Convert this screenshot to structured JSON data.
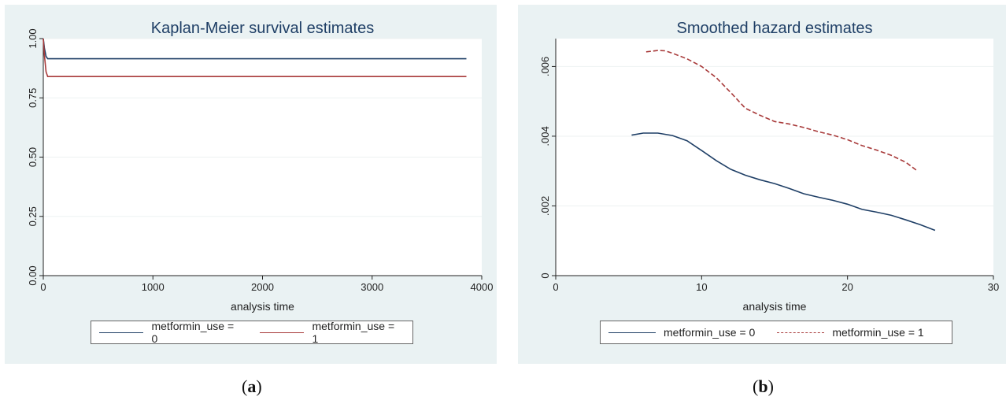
{
  "colors": {
    "series0": "#1f3f66",
    "series1": "#a83a3a",
    "panel_bg": "#eaf2f3",
    "title": "#1f3f66"
  },
  "chart_data": [
    {
      "type": "line",
      "title": "Kaplan-Meier survival estimates",
      "xlabel": "analysis time",
      "ylabel": "",
      "xlim": [
        0,
        4000
      ],
      "ylim": [
        0,
        1
      ],
      "xticks": [
        "0",
        "1000",
        "2000",
        "3000",
        "4000"
      ],
      "yticks": [
        "0.00",
        "0.25",
        "0.50",
        "0.75",
        "1.00"
      ],
      "grid": true,
      "legend": "bottom",
      "series": [
        {
          "name": "metformin_use = 0",
          "style": "solid",
          "x": [
            0,
            10,
            25,
            40,
            3860
          ],
          "y": [
            1.0,
            0.96,
            0.925,
            0.915,
            0.915
          ]
        },
        {
          "name": "metformin_use = 1",
          "style": "solid",
          "x": [
            0,
            10,
            25,
            40,
            3860
          ],
          "y": [
            1.0,
            0.93,
            0.86,
            0.84,
            0.84
          ]
        }
      ]
    },
    {
      "type": "line",
      "title": "Smoothed hazard estimates",
      "xlabel": "analysis time",
      "ylabel": "",
      "xlim": [
        0,
        30
      ],
      "ylim": [
        0,
        0.0068
      ],
      "xticks": [
        "0",
        "10",
        "20",
        "30"
      ],
      "yticks": [
        "0",
        ".002",
        ".004",
        ".006"
      ],
      "grid": true,
      "legend": "bottom",
      "series": [
        {
          "name": "metformin_use = 0",
          "style": "solid",
          "x": [
            5.2,
            6,
            7,
            8,
            9,
            10,
            11,
            12,
            13,
            14,
            15,
            16,
            17,
            18,
            19,
            20,
            21,
            22,
            23,
            24,
            25,
            26
          ],
          "y": [
            0.00403,
            0.00409,
            0.00409,
            0.00402,
            0.00387,
            0.00359,
            0.0033,
            0.00305,
            0.00288,
            0.00275,
            0.00264,
            0.0025,
            0.00235,
            0.00225,
            0.00216,
            0.00205,
            0.0019,
            0.00182,
            0.00173,
            0.0016,
            0.00146,
            0.0013
          ]
        },
        {
          "name": "metformin_use = 1",
          "style": "dashed",
          "x": [
            6.2,
            7,
            7.5,
            8,
            9,
            10,
            11,
            12,
            13,
            14,
            15,
            16,
            17,
            18,
            19,
            20,
            21,
            22,
            23,
            24,
            24.8
          ],
          "y": [
            0.00642,
            0.00646,
            0.00645,
            0.00638,
            0.00622,
            0.006,
            0.00568,
            0.00525,
            0.0048,
            0.0046,
            0.00442,
            0.00435,
            0.00425,
            0.00413,
            0.00403,
            0.0039,
            0.00373,
            0.0036,
            0.00345,
            0.00325,
            0.003
          ]
        }
      ]
    }
  ],
  "captions": [
    {
      "open": "(",
      "letter": "a",
      "close": ")"
    },
    {
      "open": "(",
      "letter": "b",
      "close": ")"
    }
  ]
}
